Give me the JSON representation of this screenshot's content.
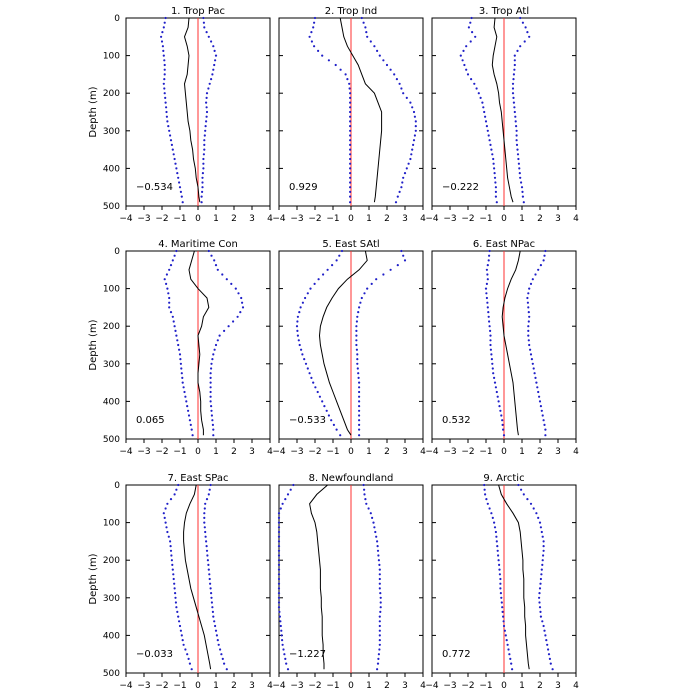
{
  "chart_data": {
    "type": "line",
    "ylabel": "Depth (m)",
    "xlim": [
      -4,
      4
    ],
    "ylim": [
      500,
      0
    ],
    "x_ticks": [
      -4,
      -3,
      -2,
      -1,
      0,
      1,
      2,
      3,
      4
    ],
    "y_ticks": [
      0,
      100,
      200,
      300,
      400,
      500
    ],
    "grid": false,
    "colors": {
      "mean": "#000000",
      "bounds": "#1f1fc8",
      "zero_line": "#ff3030"
    },
    "depth": [
      0,
      25,
      50,
      75,
      100,
      125,
      150,
      175,
      200,
      225,
      250,
      275,
      300,
      325,
      350,
      375,
      400,
      425,
      450,
      475,
      490
    ],
    "panels": [
      {
        "title": "1. Trop Pac",
        "value": "−0.534",
        "mean": [
          -0.5,
          -0.55,
          -0.75,
          -0.6,
          -0.5,
          -0.55,
          -0.6,
          -0.75,
          -0.7,
          -0.65,
          -0.6,
          -0.55,
          -0.45,
          -0.4,
          -0.3,
          -0.25,
          -0.15,
          -0.1,
          0.0,
          0.05,
          0.1
        ],
        "lower": [
          -1.8,
          -1.9,
          -2.05,
          -1.95,
          -1.9,
          -1.85,
          -1.85,
          -1.9,
          -1.85,
          -1.8,
          -1.75,
          -1.7,
          -1.6,
          -1.5,
          -1.4,
          -1.3,
          -1.2,
          -1.1,
          -1.0,
          -0.9,
          -0.85
        ],
        "upper": [
          0.3,
          0.35,
          0.6,
          0.85,
          1.0,
          0.9,
          0.8,
          0.65,
          0.5,
          0.45,
          0.5,
          0.45,
          0.4,
          0.35,
          0.35,
          0.3,
          0.3,
          0.25,
          0.25,
          0.2,
          0.2
        ]
      },
      {
        "title": "2. Trop Ind",
        "value": "0.929",
        "mean": [
          -0.6,
          -0.5,
          -0.4,
          -0.2,
          0.1,
          0.4,
          0.6,
          0.8,
          1.3,
          1.5,
          1.7,
          1.7,
          1.7,
          1.65,
          1.6,
          1.55,
          1.5,
          1.45,
          1.4,
          1.35,
          1.3
        ],
        "lower": [
          -2.0,
          -2.1,
          -2.3,
          -2.05,
          -1.6,
          -0.85,
          -0.3,
          -0.1,
          -0.05,
          -0.05,
          -0.05,
          -0.05,
          -0.05,
          -0.05,
          -0.05,
          -0.05,
          -0.05,
          -0.05,
          -0.05,
          -0.05,
          -0.05
        ],
        "upper": [
          0.6,
          0.8,
          0.9,
          1.3,
          1.6,
          2.0,
          2.4,
          2.7,
          2.9,
          3.3,
          3.5,
          3.6,
          3.6,
          3.5,
          3.4,
          3.3,
          3.1,
          2.9,
          2.8,
          2.6,
          2.5
        ]
      },
      {
        "title": "3. Trop Atl",
        "value": "−0.222",
        "mean": [
          -0.5,
          -0.55,
          -0.4,
          -0.5,
          -0.6,
          -0.65,
          -0.55,
          -0.4,
          -0.3,
          -0.25,
          -0.15,
          -0.1,
          -0.05,
          0.0,
          0.05,
          0.1,
          0.15,
          0.2,
          0.3,
          0.4,
          0.5
        ],
        "lower": [
          -1.8,
          -1.95,
          -1.6,
          -2.1,
          -2.4,
          -2.2,
          -2.0,
          -1.65,
          -1.4,
          -1.2,
          -1.1,
          -1.0,
          -0.9,
          -0.8,
          -0.7,
          -0.6,
          -0.55,
          -0.5,
          -0.45,
          -0.45,
          -0.4
        ],
        "upper": [
          0.9,
          1.2,
          1.4,
          0.9,
          0.6,
          0.6,
          0.55,
          0.5,
          0.5,
          0.55,
          0.6,
          0.65,
          0.7,
          0.7,
          0.75,
          0.8,
          0.85,
          0.9,
          1.0,
          1.05,
          1.1
        ]
      },
      {
        "title": "4. Maritime Con",
        "value": "0.065",
        "mean": [
          -0.2,
          -0.35,
          -0.5,
          -0.4,
          0.0,
          0.5,
          0.6,
          0.3,
          0.2,
          0.0,
          0.05,
          0.1,
          0.05,
          0.0,
          0.0,
          0.1,
          0.15,
          0.15,
          0.2,
          0.3,
          0.3
        ],
        "lower": [
          -1.2,
          -1.4,
          -1.6,
          -1.85,
          -1.7,
          -1.6,
          -1.6,
          -1.4,
          -1.3,
          -1.2,
          -1.1,
          -1.0,
          -0.95,
          -0.9,
          -0.85,
          -0.75,
          -0.65,
          -0.55,
          -0.45,
          -0.35,
          -0.3
        ],
        "upper": [
          0.6,
          0.9,
          1.1,
          1.6,
          2.1,
          2.4,
          2.5,
          2.2,
          1.7,
          1.2,
          1.0,
          0.85,
          0.75,
          0.7,
          0.7,
          0.7,
          0.7,
          0.75,
          0.8,
          0.85,
          0.85
        ]
      },
      {
        "title": "5. East SAtl",
        "value": "−0.533",
        "mean": [
          0.8,
          0.9,
          0.45,
          -0.2,
          -0.7,
          -1.05,
          -1.35,
          -1.55,
          -1.7,
          -1.75,
          -1.7,
          -1.6,
          -1.5,
          -1.35,
          -1.2,
          -1.0,
          -0.8,
          -0.6,
          -0.4,
          -0.2,
          0.0
        ],
        "lower": [
          -0.5,
          -0.8,
          -1.3,
          -1.8,
          -2.25,
          -2.55,
          -2.8,
          -2.95,
          -3.0,
          -2.95,
          -2.85,
          -2.7,
          -2.5,
          -2.3,
          -2.1,
          -1.85,
          -1.6,
          -1.35,
          -1.1,
          -0.8,
          -0.6
        ],
        "upper": [
          2.8,
          3.0,
          2.2,
          1.4,
          0.9,
          0.6,
          0.45,
          0.35,
          0.3,
          0.3,
          0.3,
          0.35,
          0.35,
          0.4,
          0.45,
          0.45,
          0.45,
          0.45,
          0.45,
          0.45,
          0.45
        ]
      },
      {
        "title": "6. East NPac",
        "value": "0.532",
        "mean": [
          0.9,
          0.8,
          0.65,
          0.4,
          0.2,
          0.05,
          -0.05,
          -0.1,
          -0.05,
          0.0,
          0.1,
          0.2,
          0.3,
          0.4,
          0.5,
          0.55,
          0.6,
          0.65,
          0.7,
          0.75,
          0.8
        ],
        "lower": [
          -0.8,
          -0.85,
          -0.95,
          -0.9,
          -1.0,
          -0.95,
          -0.9,
          -0.85,
          -0.8,
          -0.75,
          -0.75,
          -0.7,
          -0.65,
          -0.6,
          -0.5,
          -0.4,
          -0.3,
          -0.2,
          -0.1,
          -0.05,
          0.0
        ],
        "upper": [
          2.3,
          2.2,
          1.9,
          1.6,
          1.4,
          1.3,
          1.35,
          1.4,
          1.35,
          1.35,
          1.4,
          1.5,
          1.6,
          1.7,
          1.8,
          1.9,
          2.0,
          2.1,
          2.2,
          2.3,
          2.3
        ]
      },
      {
        "title": "7. East SPac",
        "value": "−0.033",
        "mean": [
          -0.1,
          -0.2,
          -0.45,
          -0.65,
          -0.75,
          -0.8,
          -0.8,
          -0.75,
          -0.7,
          -0.6,
          -0.5,
          -0.4,
          -0.25,
          -0.1,
          0.05,
          0.2,
          0.35,
          0.45,
          0.55,
          0.65,
          0.7
        ],
        "lower": [
          -1.1,
          -1.3,
          -1.7,
          -1.9,
          -1.8,
          -1.7,
          -1.55,
          -1.5,
          -1.45,
          -1.4,
          -1.35,
          -1.3,
          -1.25,
          -1.2,
          -1.1,
          -1.0,
          -0.9,
          -0.8,
          -0.6,
          -0.45,
          -0.35
        ],
        "upper": [
          0.7,
          0.6,
          0.4,
          0.35,
          0.35,
          0.4,
          0.45,
          0.5,
          0.55,
          0.6,
          0.65,
          0.7,
          0.75,
          0.8,
          0.85,
          0.95,
          1.05,
          1.15,
          1.3,
          1.45,
          1.6
        ]
      },
      {
        "title": "8. Newfoundland",
        "value": "−1.227",
        "mean": [
          -1.3,
          -1.9,
          -2.3,
          -2.2,
          -2.0,
          -1.9,
          -1.85,
          -1.8,
          -1.75,
          -1.7,
          -1.7,
          -1.7,
          -1.65,
          -1.65,
          -1.6,
          -1.6,
          -1.6,
          -1.55,
          -1.55,
          -1.5,
          -1.5
        ],
        "lower": [
          -3.2,
          -3.5,
          -3.8,
          -4.0,
          -4.0,
          -4.0,
          -4.0,
          -4.0,
          -4.0,
          -4.0,
          -4.0,
          -4.0,
          -4.0,
          -4.0,
          -3.95,
          -3.9,
          -3.85,
          -3.8,
          -3.7,
          -3.6,
          -3.5
        ],
        "upper": [
          0.7,
          0.75,
          0.85,
          1.1,
          1.25,
          1.35,
          1.45,
          1.5,
          1.55,
          1.6,
          1.6,
          1.6,
          1.65,
          1.65,
          1.6,
          1.6,
          1.6,
          1.6,
          1.55,
          1.5,
          1.45
        ]
      },
      {
        "title": "9. Arctic",
        "value": "0.772",
        "mean": [
          -0.3,
          -0.15,
          0.15,
          0.5,
          0.8,
          0.9,
          0.95,
          1.0,
          1.05,
          1.05,
          1.1,
          1.1,
          1.1,
          1.15,
          1.15,
          1.2,
          1.2,
          1.25,
          1.3,
          1.35,
          1.4
        ],
        "lower": [
          -1.1,
          -1.05,
          -0.9,
          -0.7,
          -0.55,
          -0.45,
          -0.4,
          -0.35,
          -0.3,
          -0.25,
          -0.2,
          -0.2,
          -0.15,
          -0.1,
          -0.05,
          0.0,
          0.1,
          0.2,
          0.3,
          0.4,
          0.45
        ],
        "upper": [
          0.8,
          1.1,
          1.5,
          1.8,
          2.0,
          2.1,
          2.2,
          2.2,
          2.15,
          2.1,
          2.05,
          2.0,
          1.95,
          2.0,
          2.05,
          2.2,
          2.3,
          2.4,
          2.5,
          2.6,
          2.7
        ]
      }
    ]
  }
}
